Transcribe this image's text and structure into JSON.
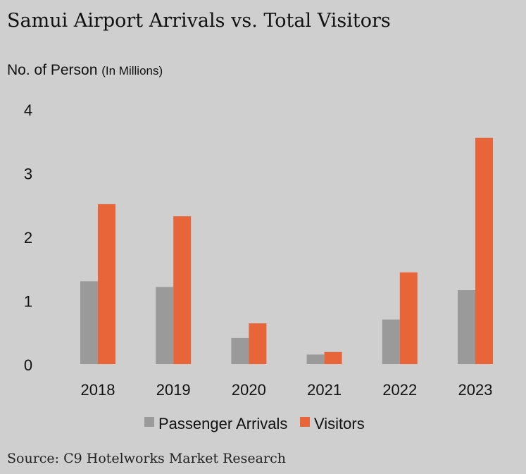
{
  "title": "Samui Airport Arrivals vs. Total Visitors",
  "unit_label": {
    "main": "No. of Person ",
    "paren": "(In Millions)"
  },
  "source": "Source: C9 Hotelworks Market Research",
  "colors": {
    "background": "#cfcfcf",
    "passenger_arrivals": "#9a9a9a",
    "visitors": "#e8653a"
  },
  "chart_data": {
    "type": "bar",
    "categories": [
      "2018",
      "2019",
      "2020",
      "2021",
      "2022",
      "2023"
    ],
    "series": [
      {
        "name": "Passenger Arrivals",
        "values": [
          1.3,
          1.21,
          0.41,
          0.15,
          0.7,
          1.16
        ]
      },
      {
        "name": "Visitors",
        "values": [
          2.51,
          2.32,
          0.64,
          0.19,
          1.44,
          3.55
        ]
      }
    ],
    "yticks": [
      "0",
      "1",
      "2",
      "3",
      "4"
    ],
    "ylim": [
      0,
      4
    ],
    "grid": false,
    "legend_position": "bottom"
  }
}
